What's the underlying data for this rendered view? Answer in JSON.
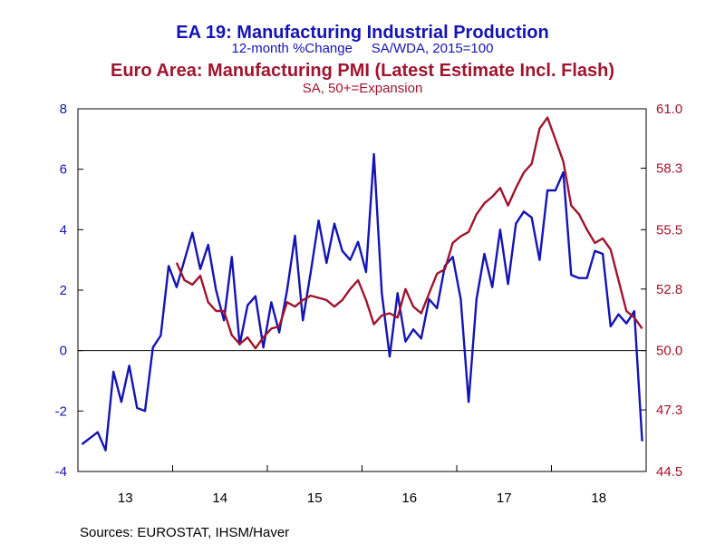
{
  "chart_data": {
    "type": "line",
    "title_left": "EA 19: Manufacturing Industrial Production",
    "subtitle_left": "12-month %Change     SA/WDA, 2015=100",
    "title_right": "Euro Area: Manufacturing PMI (Latest Estimate Incl. Flash)",
    "subtitle_right": "SA, 50+=Expansion",
    "source": "Sources:  EUROSTAT, IHSM/Haver",
    "left_axis": {
      "ylim": [
        -4,
        8
      ],
      "ticks": [
        "8",
        "6",
        "4",
        "2",
        "0",
        "-2",
        "-4"
      ]
    },
    "right_axis": {
      "ylim": [
        44.5,
        61.0
      ],
      "ticks": [
        "61.0",
        "58.3",
        "55.5",
        "52.8",
        "50.0",
        "47.3",
        "44.5"
      ]
    },
    "x_axis": {
      "labels": [
        "13",
        "14",
        "15",
        "16",
        "17",
        "18"
      ],
      "start_index": 0,
      "months_per_year": 12
    },
    "colors": {
      "series_left": "#1414b4",
      "series_right": "#a0142d",
      "axis_left_text": "#1414b4",
      "axis_right_text": "#a0142d",
      "frame": "#000000"
    },
    "series": [
      {
        "axis": "left",
        "start_month": "2013-01",
        "values": [
          -3.1,
          -2.9,
          -2.7,
          -3.3,
          -0.7,
          -1.7,
          -0.5,
          -1.9,
          -2.0,
          0.1,
          0.5,
          2.8,
          2.1,
          3.0,
          3.9,
          2.7,
          3.5,
          2.0,
          1.0,
          3.1,
          0.2,
          1.5,
          1.8,
          0.1,
          1.6,
          0.6,
          2.0,
          3.8,
          1.0,
          2.6,
          4.3,
          2.9,
          4.2,
          3.3,
          3.0,
          3.6,
          2.6,
          6.5,
          1.9,
          -0.2,
          1.9,
          0.3,
          0.7,
          0.4,
          1.7,
          1.4,
          2.8,
          3.1,
          1.7,
          -1.7,
          1.7,
          3.2,
          2.1,
          4.0,
          2.2,
          4.2,
          4.6,
          4.4,
          3.0,
          5.3,
          5.3,
          5.9,
          2.5,
          2.4,
          2.4,
          3.3,
          3.2,
          0.8,
          1.2,
          0.9,
          1.3,
          -3.0
        ]
      },
      {
        "axis": "right",
        "start_month": "2014-01",
        "values": [
          54.0,
          53.2,
          53.0,
          53.4,
          52.2,
          51.8,
          51.8,
          50.7,
          50.3,
          50.6,
          50.1,
          50.6,
          51.0,
          51.1,
          52.2,
          52.0,
          52.3,
          52.5,
          52.4,
          52.3,
          52.0,
          52.3,
          52.8,
          53.2,
          52.3,
          51.2,
          51.6,
          51.7,
          51.5,
          52.8,
          52.0,
          51.7,
          52.6,
          53.5,
          53.7,
          54.9,
          55.2,
          55.4,
          56.2,
          56.7,
          57.0,
          57.4,
          56.6,
          57.4,
          58.1,
          58.5,
          60.1,
          60.6,
          59.6,
          58.6,
          56.6,
          56.2,
          55.5,
          54.9,
          55.1,
          54.6,
          53.2,
          51.8,
          51.5,
          51.0
        ]
      }
    ]
  }
}
